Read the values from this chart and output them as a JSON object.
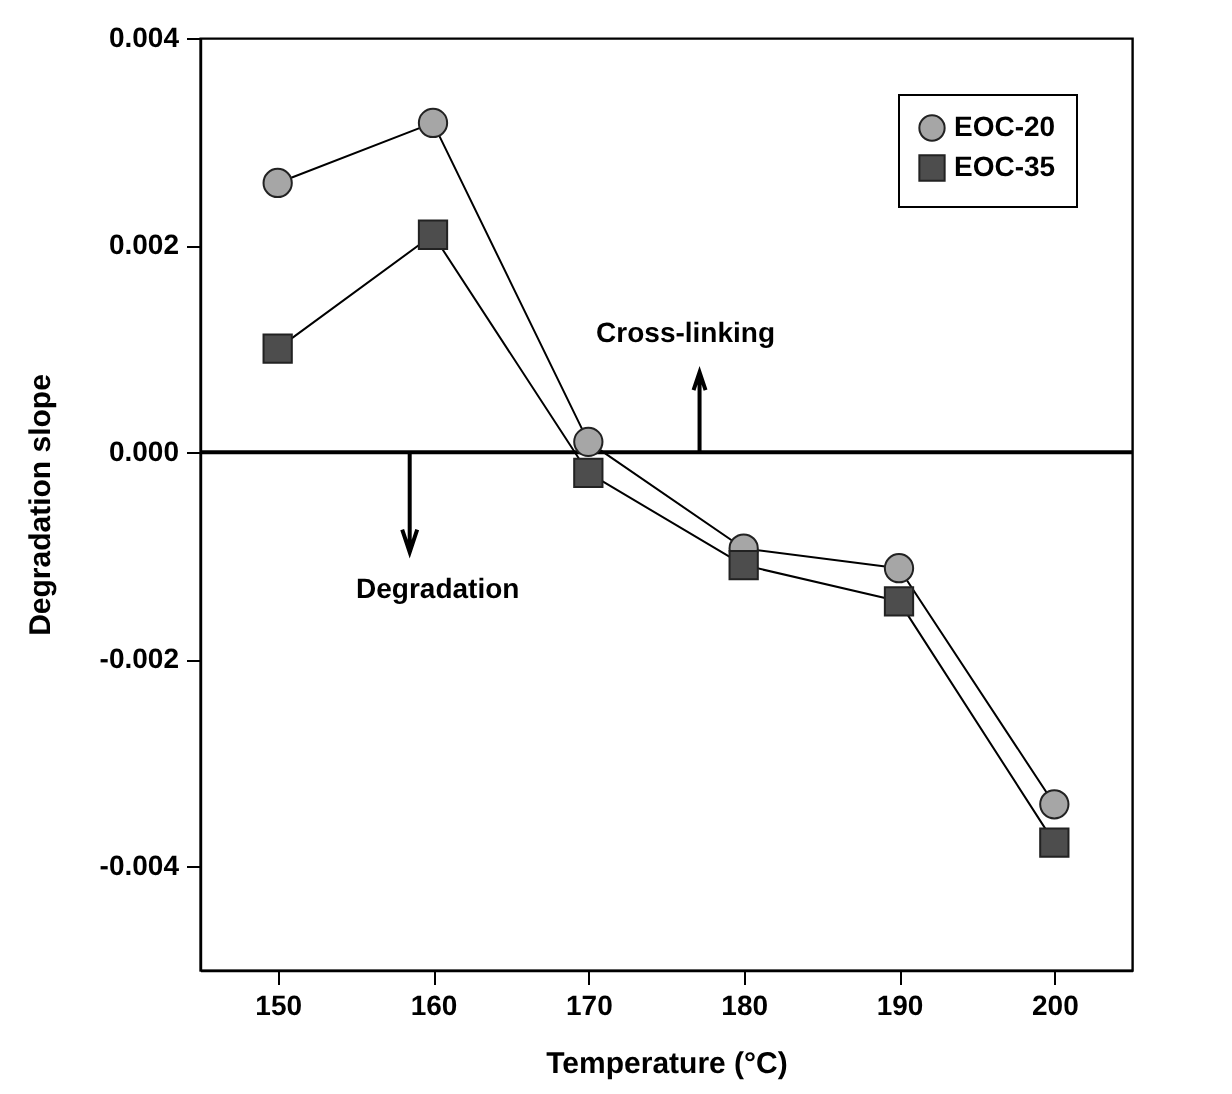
{
  "chart_data": {
    "type": "line",
    "xlabel": "Temperature (°C)",
    "ylabel": "Degradation slope",
    "x": [
      150,
      160,
      170,
      180,
      190,
      200
    ],
    "series": [
      {
        "name": "EOC-20",
        "color": "#a6a6a6",
        "marker": "circle",
        "values": [
          0.0026,
          0.00318,
          0.0001,
          -0.00093,
          -0.00112,
          -0.0034
        ]
      },
      {
        "name": "EOC-35",
        "color": "#4d4d4d",
        "marker": "square",
        "values": [
          0.001,
          0.0021,
          -0.0002,
          -0.00109,
          -0.00144,
          -0.00377
        ]
      }
    ],
    "xlim": [
      145,
      205
    ],
    "xticks": [
      150,
      160,
      170,
      180,
      190,
      200
    ],
    "ylim": [
      -0.005,
      0.004
    ],
    "yticks": [
      {
        "value": -0.004,
        "label": "-0.004"
      },
      {
        "value": -0.002,
        "label": "-0.002"
      },
      {
        "value": 0,
        "label": "0.000"
      },
      {
        "value": 0.002,
        "label": "0.002"
      },
      {
        "value": 0.004,
        "label": "0.004"
      }
    ],
    "ref_lines": [
      {
        "axis": "y",
        "value": 0,
        "color": "#000000"
      }
    ],
    "annotations": [
      "Cross-linking",
      {
        "text": "Degradation",
        "x": 158.5,
        "y": 0
      }
    ],
    "legend": "top right",
    "grid": false
  }
}
